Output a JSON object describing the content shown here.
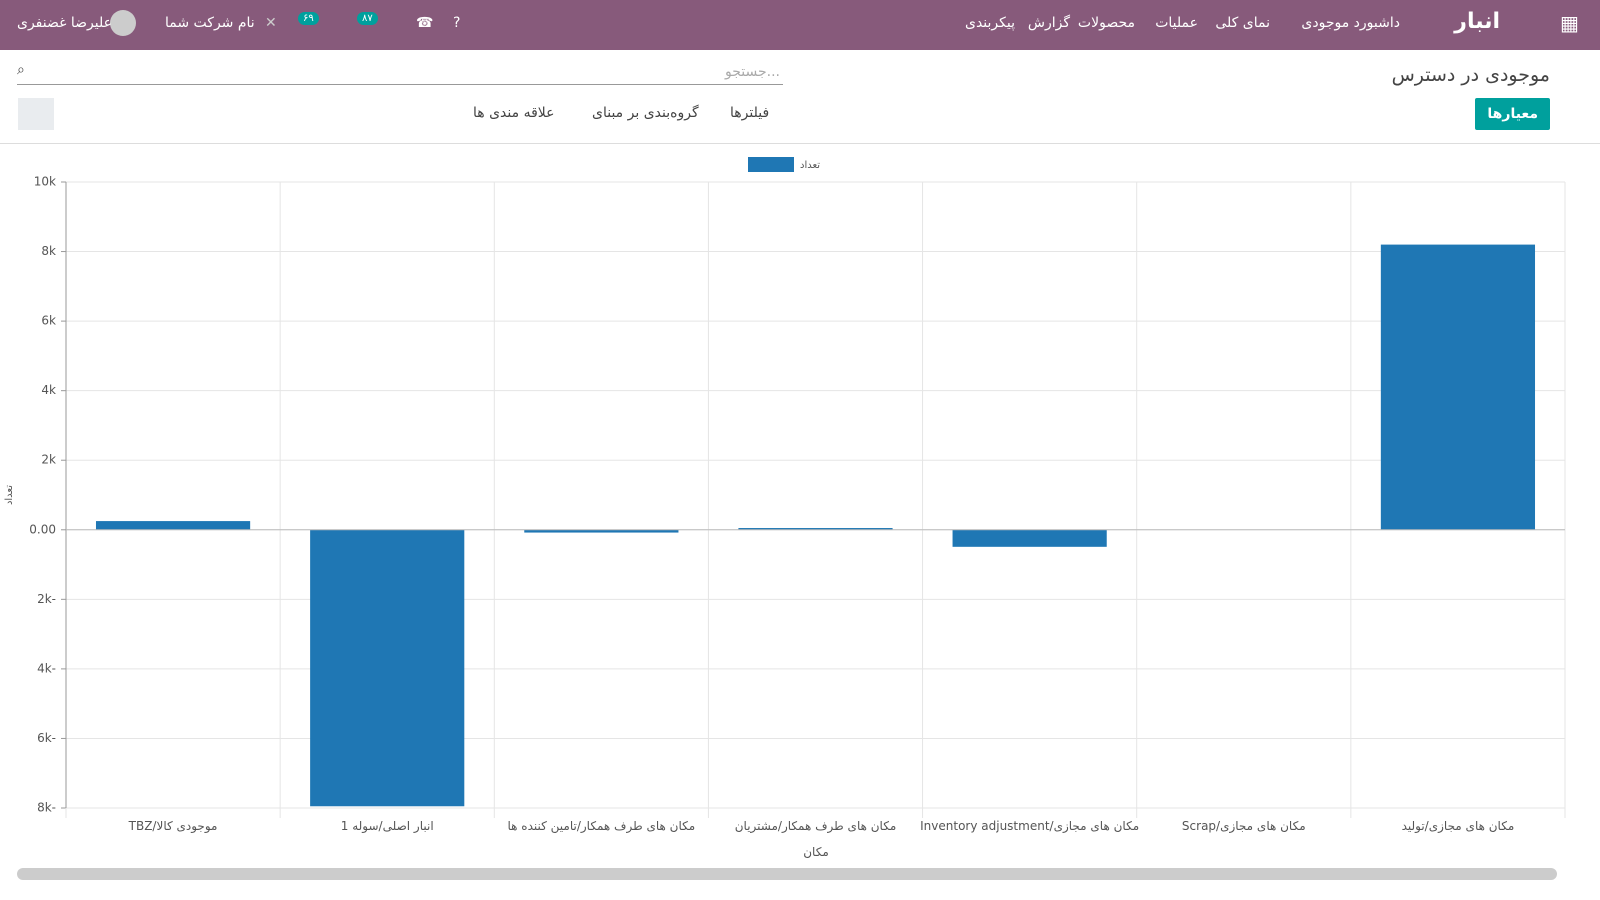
{
  "nav": {
    "brand": "انبار",
    "menu": [
      "داشبورد موجودی",
      "نمای کلی",
      "عملیات",
      "محصولات",
      "گزارش",
      "پیکربندی"
    ],
    "user": "علیرضا غضنفری",
    "company": "نام شرکت شما",
    "badges": [
      "۶۹",
      "۸۷"
    ]
  },
  "control": {
    "title": "موجودی در دسترس",
    "search_placeholder": "جستجو...",
    "measures": "معیارها",
    "filters": "فیلترها",
    "groupby": "گروه‌بندی بر مبنای",
    "favorites": "علاقه مندی ها"
  },
  "chart_data": {
    "type": "bar",
    "legend_label": "تعداد",
    "y_label": "تعداد",
    "x_label": "مکان",
    "color": "#1f77b4",
    "grid": true,
    "categories": [
      "TBZ/موجودی کالا",
      "انبار اصلی/سوله 1",
      "مکان های طرف همکار/تامین کننده ها",
      "مکان های طرف همکار/مشتریان",
      "مکان های مجازی/Inventory adjustment",
      "مکان های مجازی/Scrap",
      "مکان های مجازی/تولید"
    ],
    "values": [
      250,
      -7950,
      -80,
      50,
      -490,
      0,
      8200
    ],
    "ylim": [
      -8000,
      10000
    ],
    "yticks": [
      {
        "value": -8000,
        "label": "8k-"
      },
      {
        "value": -6000,
        "label": "6k-"
      },
      {
        "value": -4000,
        "label": "4k-"
      },
      {
        "value": -2000,
        "label": "2k-"
      },
      {
        "value": 0,
        "label": "0.00"
      },
      {
        "value": 2000,
        "label": "2k"
      },
      {
        "value": 4000,
        "label": "4k"
      },
      {
        "value": 6000,
        "label": "6k"
      },
      {
        "value": 8000,
        "label": "8k"
      },
      {
        "value": 10000,
        "label": "10k"
      }
    ]
  }
}
